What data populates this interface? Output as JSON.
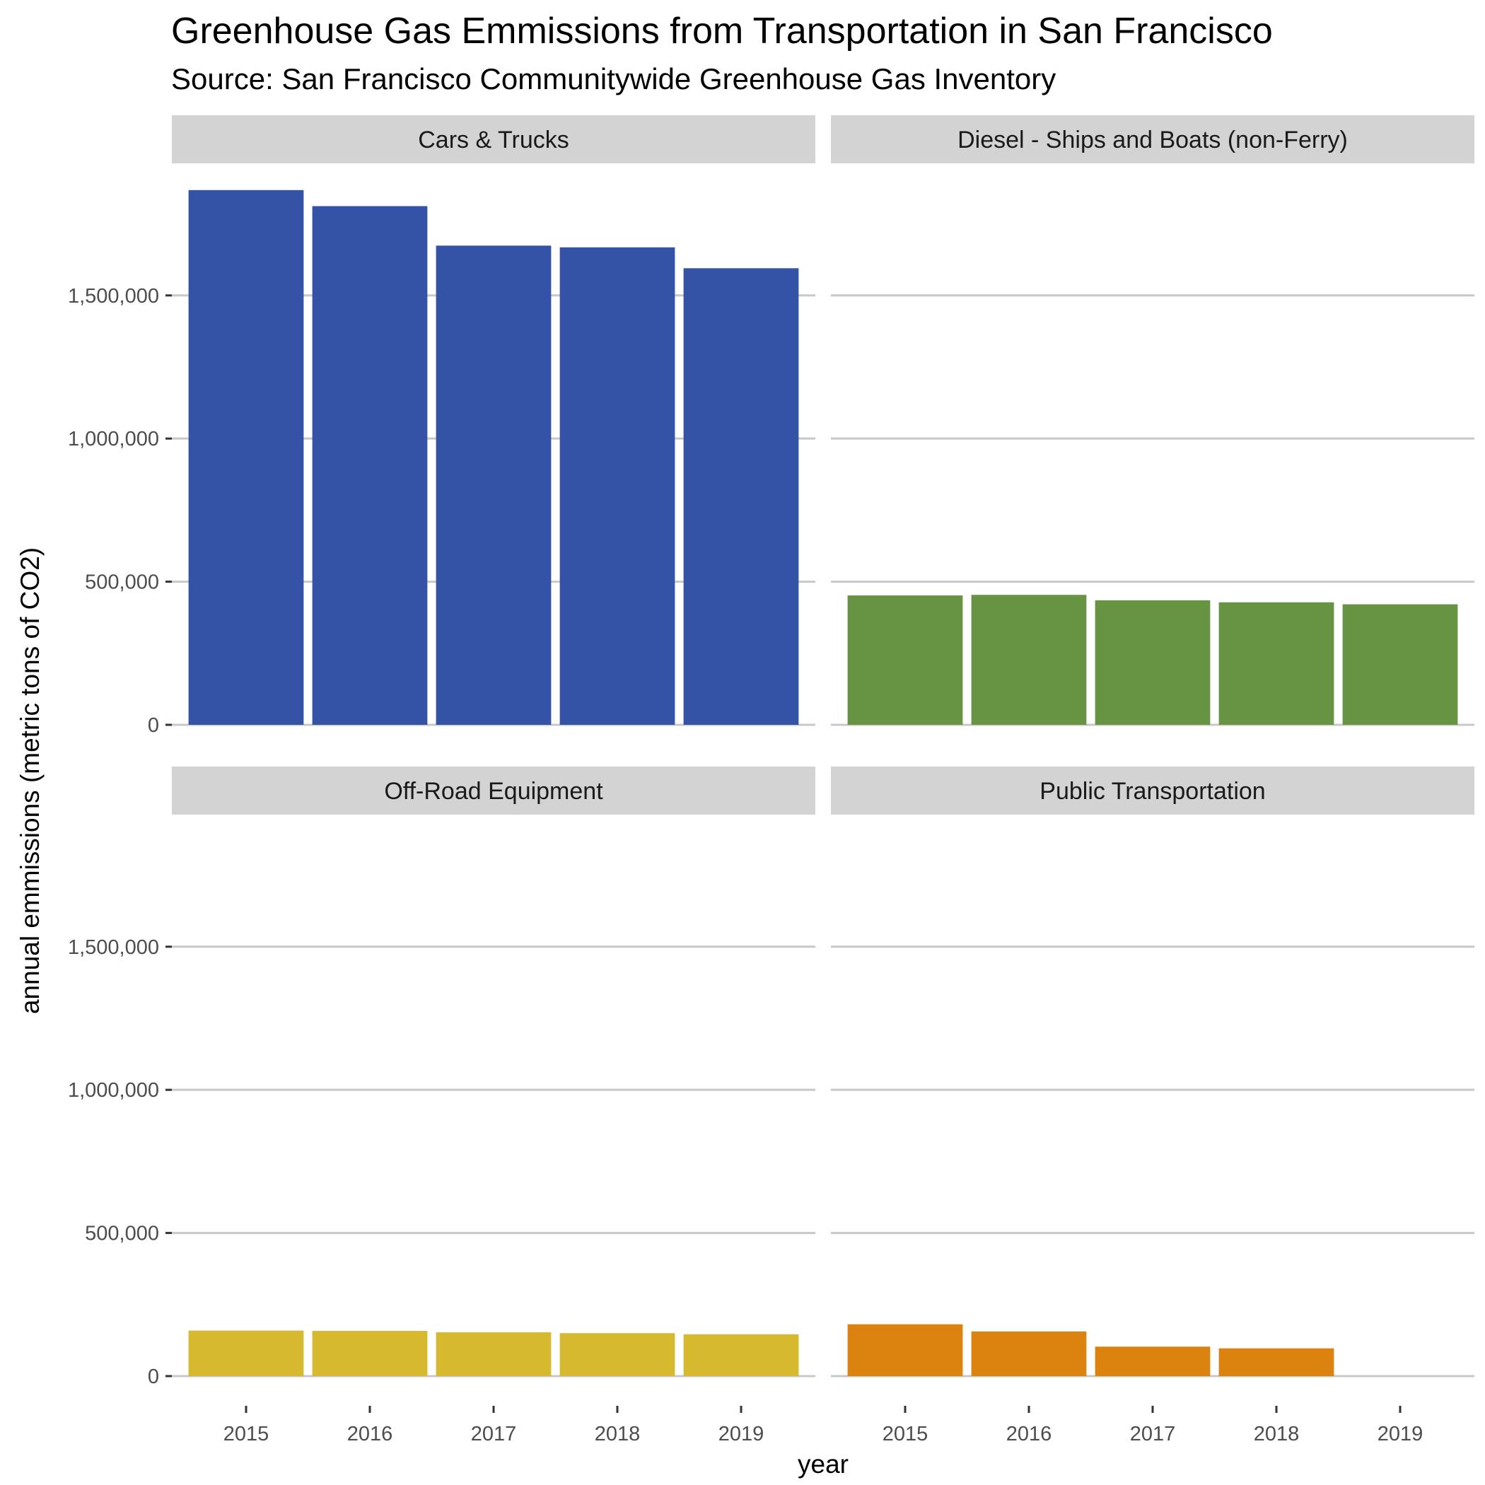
{
  "chart_data": {
    "type": "bar",
    "title": "Greenhouse Gas Emmissions from Transportation in San Francisco",
    "subtitle": "Source: San Francisco Communitywide Greenhouse Gas Inventory",
    "xlabel": "year",
    "ylabel": "annual emmissions (metric tons of CO2)",
    "categories": [
      "2015",
      "2016",
      "2017",
      "2018",
      "2019"
    ],
    "ylim": [
      0,
      1870000
    ],
    "yticks": [
      0,
      500000,
      1000000,
      1500000
    ],
    "ytick_labels": [
      "0",
      "500,000",
      "1,000,000",
      "1,500,000"
    ],
    "grid": "horizontal major",
    "legend": "none",
    "panels": [
      {
        "name": "Cars & Trucks",
        "color": "#3553A6",
        "values": [
          1868000,
          1812000,
          1674000,
          1668000,
          1595000
        ]
      },
      {
        "name": "Diesel - Ships and Boats (non-Ferry)",
        "color": "#679443",
        "values": [
          452000,
          454000,
          435000,
          428000,
          421000
        ]
      },
      {
        "name": "Off-Road Equipment",
        "color": "#D6B92F",
        "values": [
          159000,
          158000,
          153000,
          150000,
          146000
        ]
      },
      {
        "name": "Public Transportation",
        "color": "#DC820F",
        "values": [
          181000,
          156000,
          103000,
          97000,
          null
        ]
      }
    ]
  }
}
